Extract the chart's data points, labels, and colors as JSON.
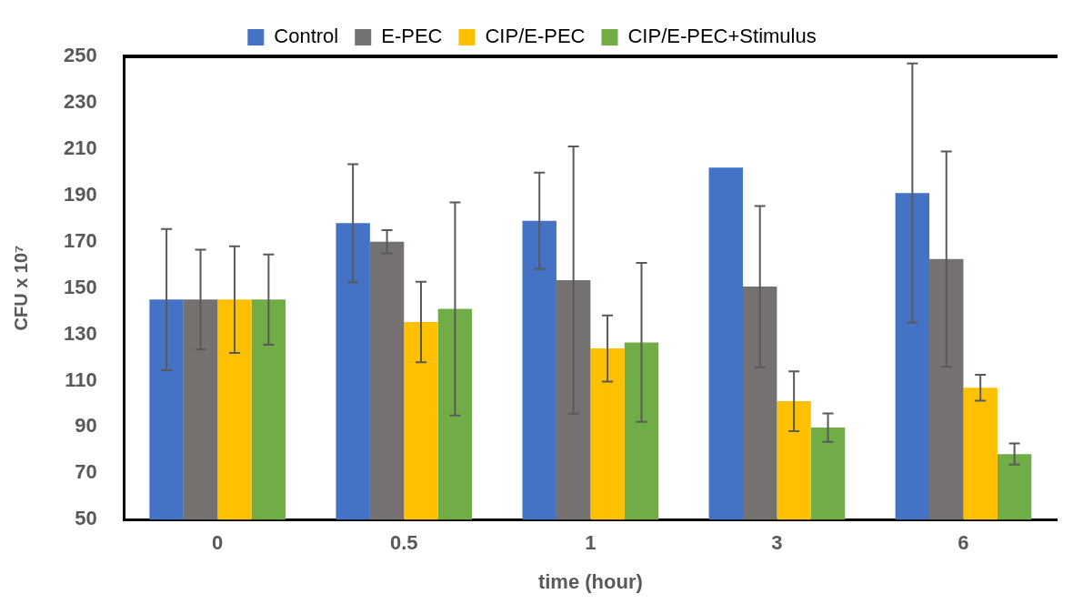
{
  "chart_data": {
    "type": "bar",
    "xlabel": "time (hour)",
    "ylabel": "CFU x 10⁷",
    "categories": [
      "0",
      "0.5",
      "1",
      "3",
      "6"
    ],
    "series": [
      {
        "name": "Control",
        "color": "#4472c4",
        "values": [
          145,
          178,
          179,
          202,
          191
        ],
        "errors": [
          30.5,
          25.5,
          20.8,
          null,
          56
        ]
      },
      {
        "name": "E-PEC",
        "color": "#767171",
        "values": [
          145,
          170,
          153.4,
          150.6,
          162.5
        ],
        "errors": [
          21.5,
          5,
          57.7,
          34.8,
          46.5
        ]
      },
      {
        "name": "CIP/E-PEC",
        "color": "#ffc000",
        "values": [
          145,
          135.3,
          123.9,
          101.1,
          106.9
        ],
        "errors": [
          23,
          17.4,
          14.3,
          12.9,
          5.6
        ]
      },
      {
        "name": "CIP/E-PEC+Stimulus",
        "color": "#70ad47",
        "values": [
          145,
          141,
          126.5,
          89.7,
          78.3
        ],
        "errors": [
          19.5,
          46,
          34.3,
          6.1,
          4.6
        ]
      }
    ],
    "ylim": [
      50,
      250
    ],
    "yticks": [
      50,
      70,
      90,
      110,
      130,
      150,
      170,
      190,
      210,
      230,
      250
    ],
    "grid": false,
    "legend": "top"
  }
}
